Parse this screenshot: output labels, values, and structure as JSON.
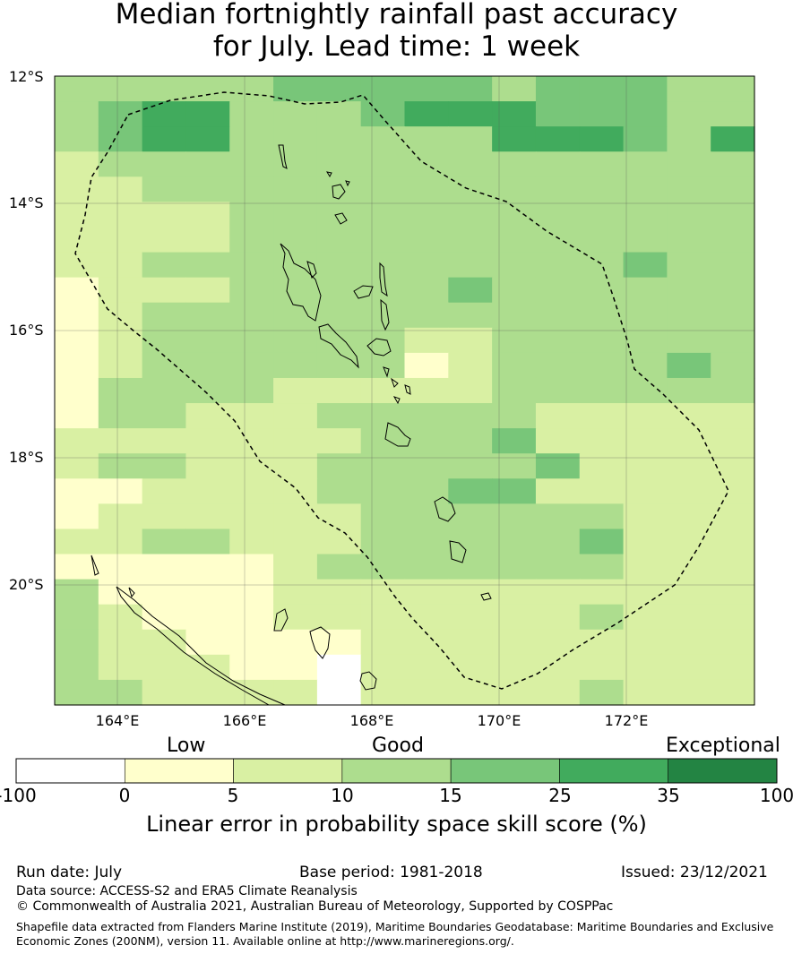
{
  "title": {
    "line1": "Median fortnightly rainfall past accuracy",
    "line2": "for July. Lead time: 1 week"
  },
  "map": {
    "lat_labels": [
      "12°S",
      "14°S",
      "16°S",
      "18°S",
      "20°S"
    ],
    "lon_labels": [
      "164°E",
      "166°E",
      "168°E",
      "170°E",
      "172°E"
    ],
    "grid_lines": true,
    "eez_boundary": "dashed",
    "extent": {
      "lon_min": 163,
      "lon_max": 174,
      "lat_min": -21.9,
      "lat_max": -12
    }
  },
  "colorbar": {
    "categories": [
      "Low",
      "Good",
      "Exceptional"
    ],
    "ticks": [
      "-100",
      "0",
      "5",
      "10",
      "15",
      "25",
      "35",
      "100"
    ],
    "colors": [
      "#ffffff",
      "#ffffcc",
      "#d9f0a3",
      "#addd8e",
      "#78c679",
      "#41ab5d",
      "#238443"
    ],
    "label": "Linear error in probability space skill score (%)"
  },
  "footer": {
    "run_date": "Run date: July",
    "base_period": "Base period: 1981-2018",
    "issued": "Issued: 23/12/2021",
    "data_source": "Data source: ACCESS-S2 and ERA5 Climate Reanalysis",
    "copyright": "© Commonwealth of Australia 2021, Australian Bureau of Meteorology, Supported by COSPPac",
    "shapefile_line1": "Shapefile data extracted from Flanders Marine Institute (2019), Maritime Boundaries Geodatabase: Maritime Boundaries and Exclusive",
    "shapefile_line2": "Economic Zones (200NM), version 11. Available online at http://www.marineregions.org/."
  }
}
